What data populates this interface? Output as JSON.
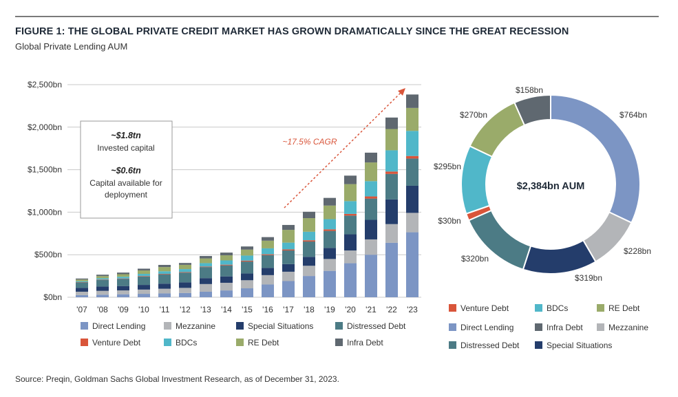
{
  "figure": {
    "title": "FIGURE 1: THE GLOBAL PRIVATE CREDIT MARKET HAS GROWN DRAMATICALLY SINCE THE GREAT RECESSION",
    "subtitle": "Global Private Lending AUM",
    "source": "Source: Preqin, Goldman Sachs Global Investment Research, as of December 31, 2023."
  },
  "colors": {
    "Direct Lending": "#7c95c4",
    "Mezzanine": "#b3b5b8",
    "Special Situations": "#243d6b",
    "Distressed Debt": "#4c7b85",
    "Venture Debt": "#d9553a",
    "BDCs": "#50b7c9",
    "RE Debt": "#9aab6a",
    "Infra Debt": "#5f6870"
  },
  "chart_data": [
    {
      "type": "bar",
      "stacked": true,
      "ylabel": "",
      "ylim": [
        0,
        2500
      ],
      "y_ticks": [
        "$0bn",
        "$500bn",
        "$1,000bn",
        "$1,500bn",
        "$2,000bn",
        "$2,500bn"
      ],
      "y_tick_values": [
        0,
        500,
        1000,
        1500,
        2000,
        2500
      ],
      "grid": true,
      "categories": [
        "'07",
        "'08",
        "'09",
        "'10",
        "'11",
        "'12",
        "'13",
        "'14",
        "'15",
        "'16",
        "'17",
        "'18",
        "'19",
        "'20",
        "'21",
        "'22",
        "'23"
      ],
      "series": [
        {
          "name": "Direct Lending",
          "values": [
            25,
            30,
            35,
            40,
            45,
            50,
            65,
            80,
            105,
            150,
            190,
            250,
            310,
            400,
            500,
            640,
            764
          ]
        },
        {
          "name": "Mezzanine",
          "values": [
            40,
            45,
            45,
            50,
            55,
            60,
            90,
            90,
            95,
            110,
            110,
            120,
            140,
            150,
            180,
            220,
            228
          ]
        },
        {
          "name": "Special Situations",
          "values": [
            45,
            50,
            52,
            55,
            60,
            65,
            70,
            75,
            80,
            85,
            90,
            105,
            130,
            190,
            230,
            290,
            319
          ]
        },
        {
          "name": "Distressed Debt",
          "values": [
            65,
            80,
            85,
            100,
            110,
            115,
            130,
            130,
            140,
            150,
            160,
            180,
            200,
            220,
            250,
            300,
            320
          ]
        },
        {
          "name": "Venture Debt",
          "values": [
            3,
            4,
            4,
            5,
            5,
            6,
            6,
            8,
            10,
            10,
            12,
            15,
            18,
            20,
            25,
            28,
            30
          ]
        },
        {
          "name": "BDCs",
          "values": [
            10,
            15,
            20,
            25,
            30,
            35,
            40,
            50,
            60,
            70,
            80,
            100,
            120,
            150,
            180,
            250,
            295
          ]
        },
        {
          "name": "RE Debt",
          "values": [
            20,
            25,
            30,
            40,
            50,
            50,
            55,
            60,
            70,
            90,
            150,
            160,
            160,
            200,
            220,
            250,
            270
          ]
        },
        {
          "name": "Infra Debt",
          "values": [
            12,
            16,
            19,
            21,
            25,
            22,
            29,
            32,
            37,
            42,
            58,
            75,
            90,
            100,
            115,
            135,
            158
          ]
        }
      ],
      "annotation_box": {
        "line1_value": "~$1.8tn",
        "line1_label": "Invested capital",
        "line2_value": "~$0.6tn",
        "line2_label_1": "Capital available for",
        "line2_label_2": "deployment"
      },
      "trend_annotation": "~17.5% CAGR",
      "legend": [
        "Direct Lending",
        "Mezzanine",
        "Special Situations",
        "Distressed Debt",
        "Venture Debt",
        "BDCs",
        "RE Debt",
        "Infra Debt"
      ],
      "legend_placement": "bottom"
    },
    {
      "type": "pie",
      "donut": true,
      "center_label": "$2,384bn AUM",
      "slices": [
        {
          "name": "Direct Lending",
          "value": 764,
          "label": "$764bn"
        },
        {
          "name": "Mezzanine",
          "value": 228,
          "label": "$228bn"
        },
        {
          "name": "Special Situations",
          "value": 319,
          "label": "$319bn"
        },
        {
          "name": "Distressed Debt",
          "value": 320,
          "label": "$320bn"
        },
        {
          "name": "Venture Debt",
          "value": 30,
          "label": "$30bn"
        },
        {
          "name": "BDCs",
          "value": 295,
          "label": "$295bn"
        },
        {
          "name": "RE Debt",
          "value": 270,
          "label": "$270bn"
        },
        {
          "name": "Infra Debt",
          "value": 158,
          "label": "$158bn"
        }
      ],
      "legend": [
        "Venture Debt",
        "BDCs",
        "RE Debt",
        "Direct Lending",
        "Infra Debt",
        "Mezzanine",
        "Distressed Debt",
        "Special Situations"
      ],
      "legend_placement": "bottom"
    }
  ]
}
